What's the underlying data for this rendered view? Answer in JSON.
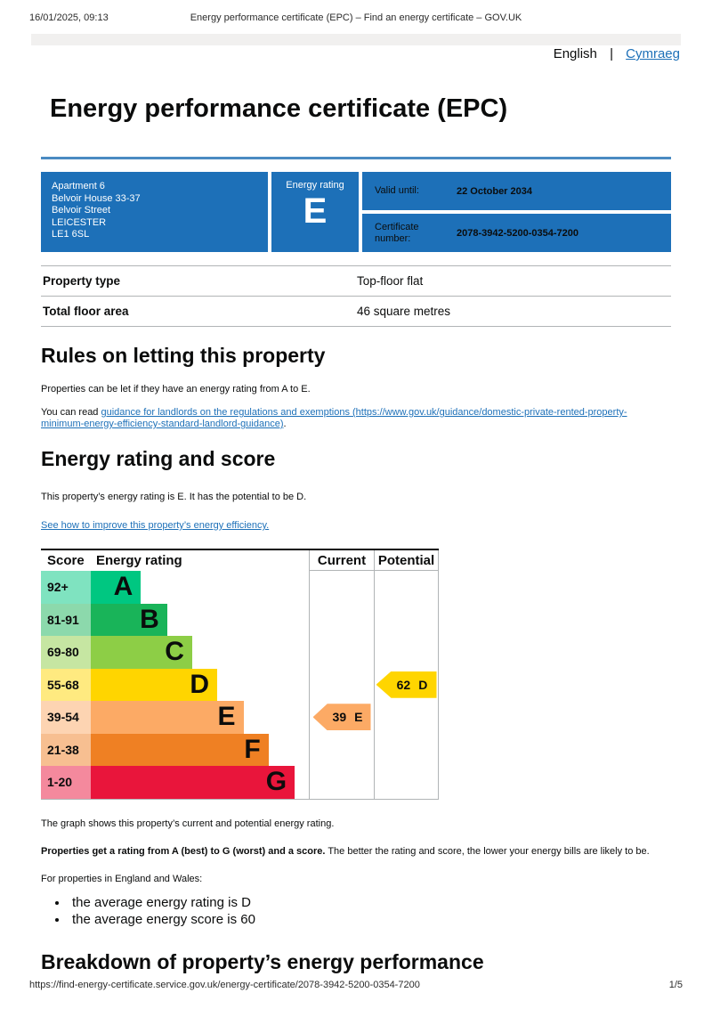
{
  "print_header": {
    "datetime": "16/01/2025, 09:13",
    "title": "Energy performance certificate (EPC) – Find an energy certificate – GOV.UK"
  },
  "language": {
    "current": "English",
    "other": "Cymraeg"
  },
  "page_title": "Energy performance certificate (EPC)",
  "summary": {
    "address_lines": [
      "Apartment 6",
      "Belvoir House 33-37",
      "Belvoir Street",
      "LEICESTER",
      "LE1 6SL"
    ],
    "energy_rating_label": "Energy rating",
    "energy_rating": "E",
    "valid_until_label": "Valid until:",
    "valid_until": "22 October 2034",
    "certificate_number_label": "Certificate number:",
    "certificate_number": "2078-3942-5200-0354-7200",
    "box_color": "#1d70b8"
  },
  "facts": [
    {
      "label": "Property type",
      "value": "Top-floor flat"
    },
    {
      "label": "Total floor area",
      "value": "46 square metres"
    }
  ],
  "rules_section": {
    "heading": "Rules on letting this property",
    "para1": "Properties can be let if they have an energy rating from A to E.",
    "para2_prefix": "You can read ",
    "link_text": "guidance for landlords on the regulations and exemptions (https://www.gov.uk/guidance/domestic-private-rented-property-minimum-energy-efficiency-standard-landlord-guidance)",
    "para2_suffix": "."
  },
  "rating_section": {
    "heading": "Energy rating and score",
    "para1": "This property’s energy rating is E. It has the potential to be D.",
    "improve_link": "See how to improve this property’s energy efficiency."
  },
  "chart_data": {
    "type": "epc-rating-chart",
    "columns": [
      "Score",
      "Energy rating",
      "Current",
      "Potential"
    ],
    "bands": [
      {
        "score_range": "92+",
        "letter": "A",
        "color": "#00c781",
        "tint": "#7fe3c0",
        "width_pct": 23
      },
      {
        "score_range": "81-91",
        "letter": "B",
        "color": "#19b459",
        "tint": "#8cd9ac",
        "width_pct": 35
      },
      {
        "score_range": "69-80",
        "letter": "C",
        "color": "#8dce46",
        "tint": "#c6e6a2",
        "width_pct": 46.5
      },
      {
        "score_range": "55-68",
        "letter": "D",
        "color": "#ffd500",
        "tint": "#ffea80",
        "width_pct": 58
      },
      {
        "score_range": "39-54",
        "letter": "E",
        "color": "#fcaa65",
        "tint": "#fdd4b2",
        "width_pct": 70
      },
      {
        "score_range": "21-38",
        "letter": "F",
        "color": "#ef8023",
        "tint": "#f7bf91",
        "width_pct": 81.5
      },
      {
        "score_range": "1-20",
        "letter": "G",
        "color": "#e9153b",
        "tint": "#f4899d",
        "width_pct": 93.5
      }
    ],
    "current": {
      "score": "39",
      "letter": "E",
      "band_index": 4,
      "color": "#fcaa65"
    },
    "potential": {
      "score": "62",
      "letter": "D",
      "band_index": 3,
      "color": "#ffd500"
    }
  },
  "chart_notes": {
    "caption": "The graph shows this property’s current and potential energy rating.",
    "bold_lead": "Properties get a rating from A (best) to G (worst) and a score.",
    "rest": " The better the rating and score, the lower your energy bills are likely to be.",
    "regions_intro": "For properties in England and Wales:",
    "bullets": [
      "the average energy rating is D",
      "the average energy score is 60"
    ]
  },
  "breakdown_heading": "Breakdown of property’s energy performance",
  "print_footer": {
    "url": "https://find-energy-certificate.service.gov.uk/energy-certificate/2078-3942-5200-0354-7200",
    "page": "1/5"
  }
}
